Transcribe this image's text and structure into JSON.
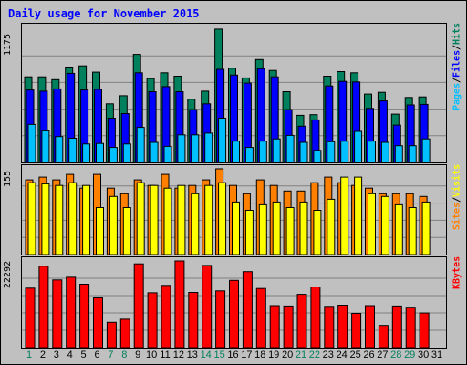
{
  "title": "Daily usage for November 2015",
  "colors": {
    "background": "#c0c0c0",
    "grid": "#808080",
    "title": "#0000ff",
    "hits": "#00805c",
    "files": "#0000ff",
    "pages": "#00c0ff",
    "visits": "#ffff00",
    "sites": "#ff8000",
    "kbytes": "#ff0000",
    "weekend_label": "#00805c",
    "weekday_label": "#000000"
  },
  "legend": {
    "pages": "Pages",
    "files": "Files",
    "hits": "Hits",
    "sites": "Sites",
    "visits": "Visits",
    "kbytes": "KBytes",
    "sep": " / "
  },
  "chart_data": [
    {
      "type": "bar",
      "title": "Daily usage for November 2015",
      "categories": [
        "1",
        "2",
        "3",
        "4",
        "5",
        "6",
        "7",
        "8",
        "9",
        "10",
        "11",
        "12",
        "13",
        "14",
        "15",
        "16",
        "17",
        "18",
        "19",
        "20",
        "21",
        "22",
        "23",
        "24",
        "25",
        "26",
        "27",
        "28",
        "29",
        "30",
        "31"
      ],
      "weekend_days": [
        "1",
        "7",
        "8",
        "14",
        "15",
        "21",
        "22",
        "28",
        "29"
      ],
      "ymax_label": "1175",
      "ylim": [
        0,
        1175
      ],
      "series": [
        {
          "name": "Hits",
          "values": [
            745,
            745,
            720,
            830,
            840,
            785,
            510,
            580,
            940,
            730,
            780,
            750,
            550,
            620,
            1160,
            820,
            735,
            895,
            800,
            615,
            410,
            415,
            750,
            790,
            780,
            595,
            610,
            420,
            565,
            570,
            null
          ]
        },
        {
          "name": "Files",
          "values": [
            630,
            620,
            640,
            775,
            630,
            635,
            385,
            425,
            780,
            615,
            660,
            615,
            460,
            510,
            810,
            760,
            690,
            815,
            745,
            460,
            315,
            370,
            665,
            705,
            700,
            470,
            535,
            325,
            500,
            505,
            null
          ]
        },
        {
          "name": "Pages",
          "values": [
            330,
            275,
            225,
            210,
            160,
            165,
            130,
            160,
            305,
            175,
            140,
            240,
            240,
            255,
            385,
            185,
            130,
            185,
            205,
            235,
            175,
            105,
            180,
            185,
            270,
            185,
            175,
            145,
            145,
            205,
            null
          ]
        }
      ]
    },
    {
      "type": "bar",
      "ymax_label": "155",
      "ylim": [
        0,
        155
      ],
      "series": [
        {
          "name": "Visits",
          "values": [
            130,
            128,
            125,
            130,
            125,
            85,
            105,
            85,
            130,
            125,
            120,
            125,
            110,
            125,
            130,
            95,
            80,
            90,
            95,
            85,
            95,
            80,
            100,
            140,
            140,
            110,
            105,
            90,
            85,
            95,
            null
          ]
        },
        {
          "name": "Sites",
          "values": [
            135,
            140,
            135,
            145,
            120,
            145,
            120,
            110,
            135,
            125,
            145,
            120,
            125,
            135,
            155,
            125,
            110,
            135,
            125,
            115,
            115,
            130,
            140,
            130,
            125,
            120,
            110,
            110,
            110,
            105,
            null
          ]
        }
      ]
    },
    {
      "type": "bar",
      "ymax_label": "22292",
      "ylim": [
        0,
        22292
      ],
      "series": [
        {
          "name": "KBytes",
          "values": [
            15300,
            20950,
            17400,
            18100,
            16300,
            12800,
            6500,
            7300,
            21550,
            14100,
            16000,
            22292,
            14200,
            21150,
            14600,
            17300,
            19550,
            15200,
            10800,
            10700,
            13700,
            15600,
            10600,
            10900,
            8800,
            10800,
            5700,
            10700,
            10400,
            8900,
            null
          ]
        }
      ]
    }
  ]
}
